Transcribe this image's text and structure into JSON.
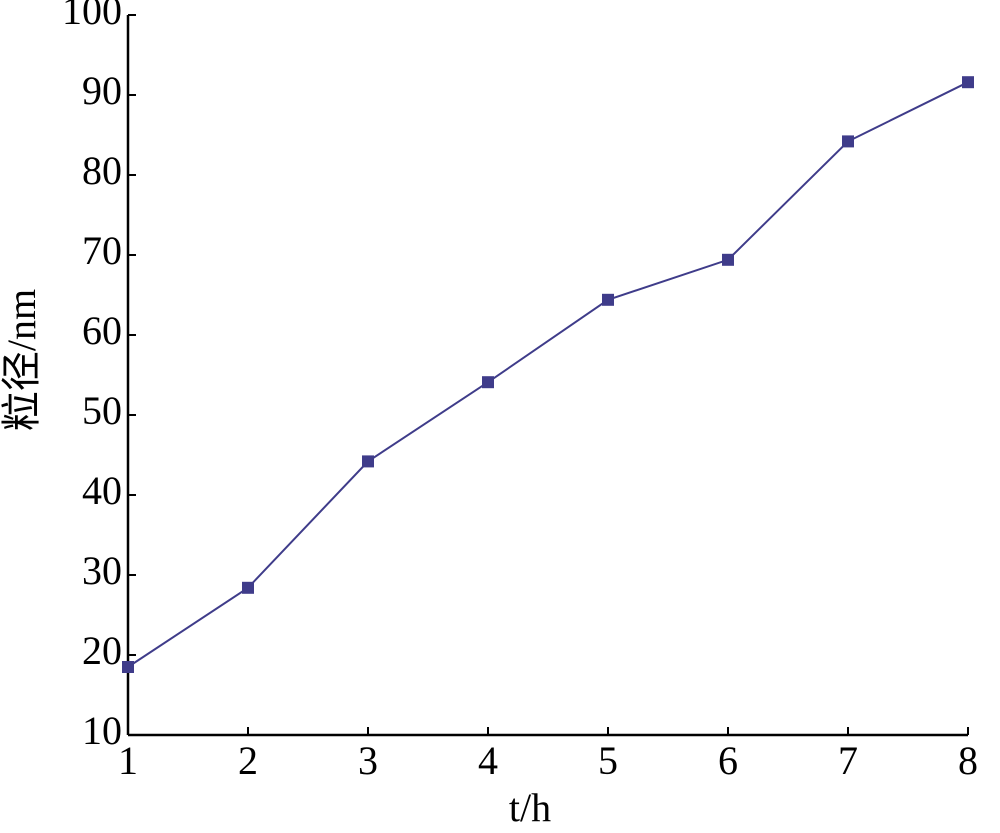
{
  "chart_data": {
    "type": "line",
    "xlabel": "t/h",
    "ylabel": "粒径/nm",
    "x": [
      1,
      2,
      3,
      4,
      5,
      6,
      7,
      8
    ],
    "series": [
      {
        "color": "#3f3c8a",
        "values": [
          18.5,
          28.4,
          44.2,
          54.1,
          64.4,
          69.4,
          84.2,
          91.6
        ]
      }
    ],
    "xlim": [
      1,
      8
    ],
    "xticks": [
      1,
      2,
      3,
      4,
      5,
      6,
      7,
      8
    ],
    "ylim": [
      10,
      100
    ],
    "yticks": [
      10,
      20,
      30,
      40,
      50,
      60,
      70,
      80,
      90,
      100
    ],
    "grid": false
  }
}
